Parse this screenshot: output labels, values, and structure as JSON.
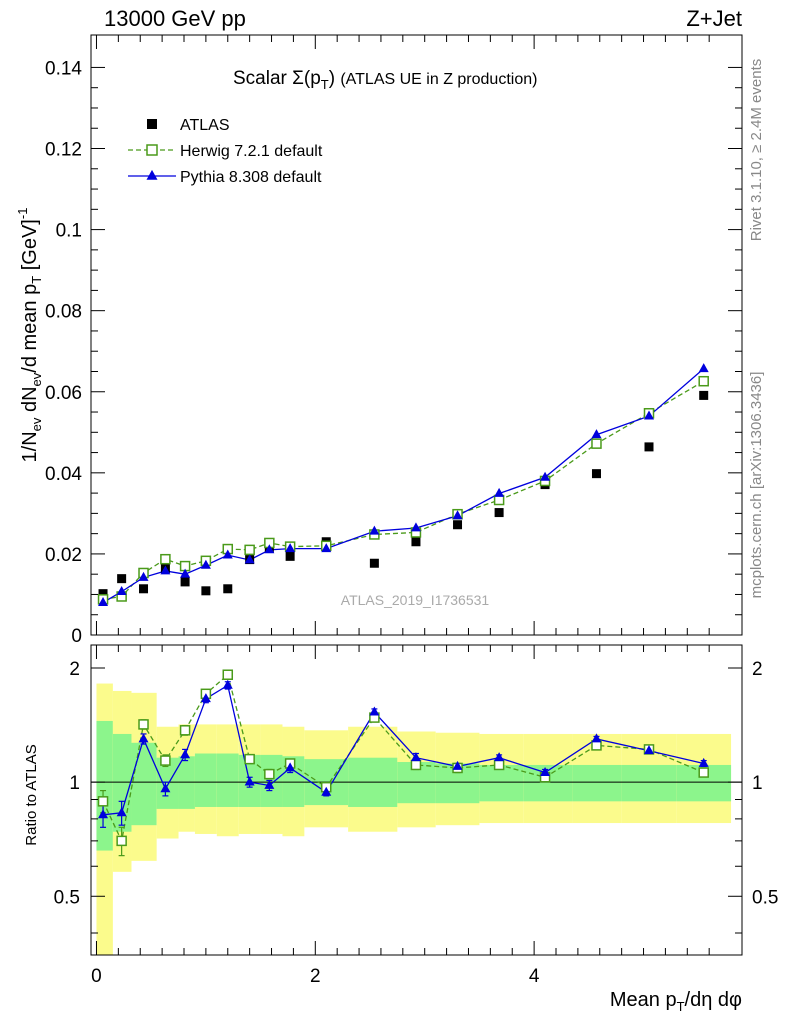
{
  "header": {
    "left": "13000 GeV pp",
    "right": "Z+Jet"
  },
  "side_labels": {
    "rivet": "Rivet 3.1.10, ≥ 2.4M events",
    "mcplots": "mcplots.cern.ch [arXiv:1306.3436]"
  },
  "watermark": "ATLAS_2019_I1736531",
  "colors": {
    "atlas": "#000000",
    "herwig": "#4a9a1a",
    "pythia": "#0000dd",
    "band_inner": "#8cf58c",
    "band_outer": "#fbfb8c"
  },
  "chart_data": [
    {
      "type": "scatter",
      "title": "Scalar Σ(pT) (ATLAS UE in Z production)",
      "ylabel": "1/Nev dNev/d mean pT [GeV]-1",
      "xlabel": "Mean pT/dη dφ",
      "xlim": [
        -0.05,
        5.9
      ],
      "ylim": [
        0,
        0.148
      ],
      "y_ticks": [
        "0",
        "0.02",
        "0.04",
        "0.06",
        "0.08",
        "0.1",
        "0.12",
        "0.14"
      ],
      "legend_position": "top-left",
      "x": [
        0.06,
        0.23,
        0.43,
        0.63,
        0.81,
        1.0,
        1.2,
        1.4,
        1.58,
        1.77,
        2.1,
        2.54,
        2.92,
        3.3,
        3.68,
        4.1,
        4.57,
        5.05,
        5.55
      ],
      "series": [
        {
          "name": "ATLAS",
          "marker": "filled-square",
          "values": [
            0.0102,
            0.0139,
            0.0114,
            0.0164,
            0.0131,
            0.0109,
            0.0114,
            0.0186,
            0.0214,
            0.0194,
            0.023,
            0.0177,
            0.023,
            0.0272,
            0.0302,
            0.0371,
            0.0398,
            0.0464,
            0.0591
          ]
        },
        {
          "name": "Herwig 7.2.1 default",
          "marker": "open-square-dashed",
          "values": [
            0.0088,
            0.0095,
            0.0153,
            0.0187,
            0.017,
            0.0183,
            0.0212,
            0.021,
            0.0227,
            0.0218,
            0.022,
            0.0248,
            0.0253,
            0.0298,
            0.0333,
            0.038,
            0.0472,
            0.0547,
            0.0626
          ]
        },
        {
          "name": "Pythia 8.308 default",
          "marker": "filled-triangle-solid",
          "values": [
            0.008,
            0.0107,
            0.0142,
            0.0158,
            0.015,
            0.0172,
            0.0197,
            0.0185,
            0.021,
            0.0213,
            0.0213,
            0.0256,
            0.0264,
            0.0294,
            0.0349,
            0.0389,
            0.0494,
            0.054,
            0.0657
          ]
        }
      ]
    },
    {
      "type": "scatter",
      "ylabel": "Ratio to ATLAS",
      "xlabel": "Mean pT/dη dφ",
      "xlim": [
        -0.05,
        5.9
      ],
      "ylim": [
        0.35,
        2.3
      ],
      "y_ticks": [
        "0.5",
        "1",
        "2"
      ],
      "x_ticks": [
        "0",
        "2",
        "4"
      ],
      "reference_line": 1,
      "band_edges": [
        0.0,
        0.15,
        0.32,
        0.55,
        0.75,
        0.9,
        1.1,
        1.3,
        1.5,
        1.7,
        1.9,
        2.3,
        2.75,
        3.1,
        3.5,
        3.9,
        4.35,
        4.8,
        5.3,
        5.8
      ],
      "band_inner": {
        "low": [
          0.66,
          0.74,
          0.77,
          0.85,
          0.85,
          0.86,
          0.86,
          0.86,
          0.86,
          0.86,
          0.87,
          0.86,
          0.88,
          0.88,
          0.89,
          0.89,
          0.89,
          0.89,
          0.89
        ],
        "high": [
          1.45,
          1.34,
          1.27,
          1.16,
          1.17,
          1.19,
          1.19,
          1.18,
          1.18,
          1.17,
          1.15,
          1.16,
          1.13,
          1.12,
          1.11,
          1.11,
          1.11,
          1.11,
          1.11
        ]
      },
      "band_outer": {
        "low": [
          0.3,
          0.58,
          0.62,
          0.71,
          0.74,
          0.73,
          0.72,
          0.73,
          0.73,
          0.72,
          0.76,
          0.74,
          0.76,
          0.77,
          0.78,
          0.78,
          0.78,
          0.78,
          0.78
        ],
        "high": [
          1.82,
          1.74,
          1.72,
          1.4,
          1.42,
          1.42,
          1.42,
          1.42,
          1.42,
          1.4,
          1.37,
          1.4,
          1.36,
          1.35,
          1.34,
          1.34,
          1.34,
          1.34,
          1.34
        ]
      },
      "series": [
        {
          "name": "Herwig 7.2.1 default",
          "values": [
            0.89,
            0.7,
            1.42,
            1.14,
            1.37,
            1.71,
            1.92,
            1.15,
            1.05,
            1.12,
            0.97,
            1.48,
            1.11,
            1.09,
            1.11,
            1.03,
            1.25,
            1.22,
            1.06
          ],
          "errors": [
            0.06,
            0.06,
            0.04,
            0.04,
            0.04,
            0.04,
            0.05,
            0.03,
            0.03,
            0.03,
            0.02,
            0.03,
            0.03,
            0.03,
            0.02,
            0.02,
            0.02,
            0.02,
            0.02
          ]
        },
        {
          "name": "Pythia 8.308 default",
          "values": [
            0.82,
            0.83,
            1.3,
            0.96,
            1.18,
            1.66,
            1.8,
            1.0,
            0.98,
            1.09,
            0.94,
            1.53,
            1.16,
            1.1,
            1.16,
            1.06,
            1.3,
            1.21,
            1.12
          ],
          "errors": [
            0.06,
            0.06,
            0.04,
            0.04,
            0.04,
            0.04,
            0.04,
            0.03,
            0.03,
            0.03,
            0.02,
            0.03,
            0.03,
            0.02,
            0.02,
            0.02,
            0.02,
            0.02,
            0.02
          ]
        }
      ]
    }
  ]
}
